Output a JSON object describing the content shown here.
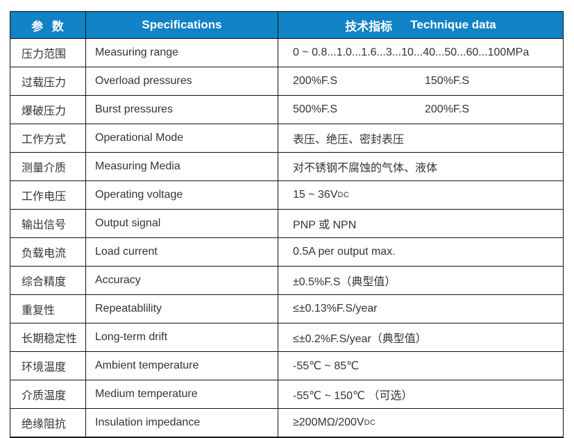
{
  "colors": {
    "header_bg": "#1182c6",
    "header_text": "#ffffff",
    "body_text": "#333333",
    "border": "#111111"
  },
  "table": {
    "header": {
      "col1": "参  数",
      "col2": "Specifications",
      "col3_cn": "技术指标",
      "col3_en": "Technique data"
    },
    "rows": [
      {
        "cn": "压力范围",
        "en": "Measuring range",
        "value": "0 ~ 0.8...1.0...1.6...3...10...40...50...60...100MPa"
      },
      {
        "cn": "过载压力",
        "en": "Overload pressures",
        "value": "200%F.S",
        "value2": "150%F.S"
      },
      {
        "cn": "爆破压力",
        "en": "Burst pressures",
        "value": "500%F.S",
        "value2": "200%F.S"
      },
      {
        "cn": "工作方式",
        "en": "Operational Mode",
        "value": "表压、绝压、密封表压"
      },
      {
        "cn": "测量介质",
        "en": "Measuring Media",
        "value": "对不锈钢不腐蚀的气体、液体"
      },
      {
        "cn": "工作电压",
        "en": "Operating voltage",
        "value": "15 ~ 36V",
        "value_sub": "DC"
      },
      {
        "cn": "输出信号",
        "en": "Output signal",
        "value": "PNP 或 NPN"
      },
      {
        "cn": "负载电流",
        "en": "Load current",
        "value": "0.5A per output max."
      },
      {
        "cn": "综合精度",
        "en": "Accuracy",
        "value": "±0.5%F.S（典型值）"
      },
      {
        "cn": "重复性",
        "en": "Repeatablility",
        "value": "≤±0.13%F.S/year"
      },
      {
        "cn": "长期稳定性",
        "en": "Long-term drift",
        "value": "≤±0.2%F.S/year（典型值）"
      },
      {
        "cn": "环境温度",
        "en": "Ambient temperature",
        "value": "-55℃ ~ 85℃"
      },
      {
        "cn": "介质温度",
        "en": "Medium temperature",
        "value": "-55℃ ~ 150℃ （可选）"
      },
      {
        "cn": "绝缘阻抗",
        "en": "Insulation impedance",
        "value": "≥200MΩ/200V",
        "value_sub": "DC"
      }
    ]
  }
}
